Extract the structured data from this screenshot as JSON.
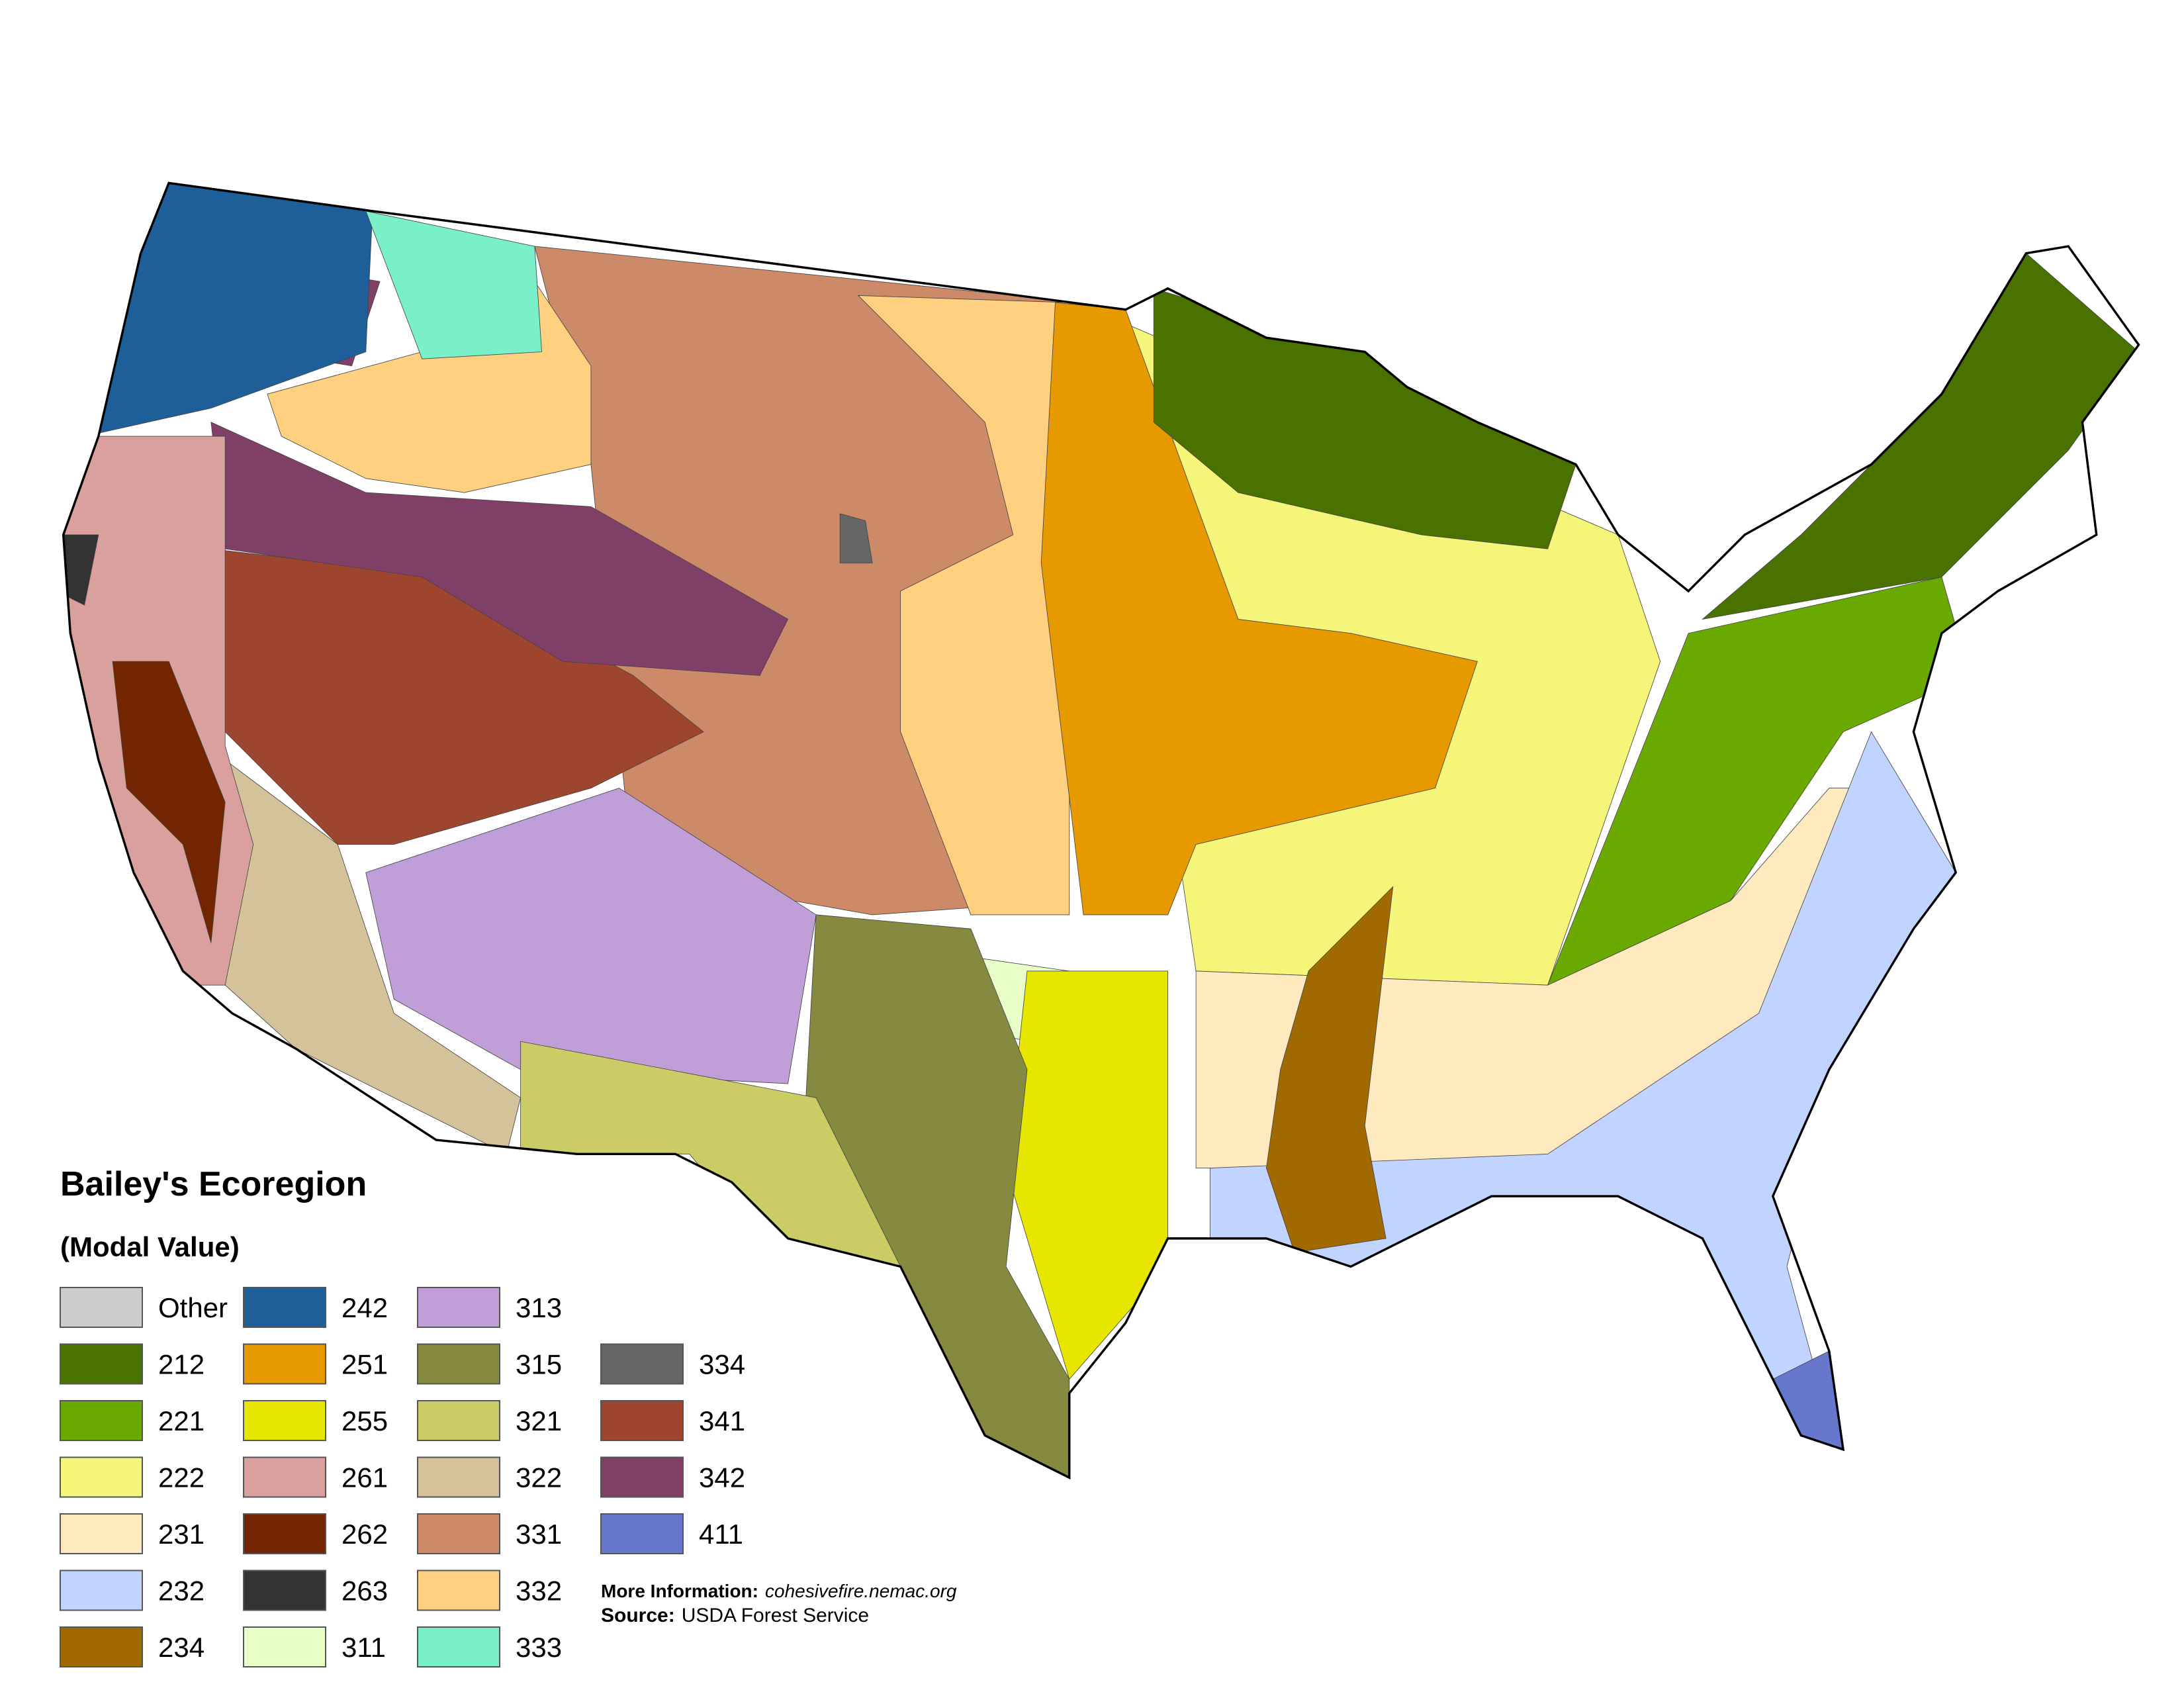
{
  "title": "Bailey's Ecoregion",
  "subtitle": "(Modal Value)",
  "legend": {
    "items": [
      {
        "label": "Other",
        "color": "#cccccc"
      },
      {
        "label": "212",
        "color": "#4a7200"
      },
      {
        "label": "221",
        "color": "#6aaa00"
      },
      {
        "label": "222",
        "color": "#f5f57a"
      },
      {
        "label": "231",
        "color": "#ffeac0"
      },
      {
        "label": "232",
        "color": "#c0d4ff"
      },
      {
        "label": "234",
        "color": "#a06a00"
      },
      {
        "label": "242",
        "color": "#1f5f99"
      },
      {
        "label": "251",
        "color": "#e69a00"
      },
      {
        "label": "255",
        "color": "#e6e600"
      },
      {
        "label": "261",
        "color": "#d9a09e"
      },
      {
        "label": "262",
        "color": "#722500"
      },
      {
        "label": "263",
        "color": "#333333"
      },
      {
        "label": "311",
        "color": "#e8ffc8"
      },
      {
        "label": "313",
        "color": "#c09ed8"
      },
      {
        "label": "315",
        "color": "#858a40"
      },
      {
        "label": "321",
        "color": "#cccc66"
      },
      {
        "label": "322",
        "color": "#d4c29a"
      },
      {
        "label": "331",
        "color": "#cc8a68"
      },
      {
        "label": "332",
        "color": "#ffd080"
      },
      {
        "label": "333",
        "color": "#7af0c8"
      },
      {
        "label": "334",
        "color": "#666666"
      },
      {
        "label": "341",
        "color": "#9e4530"
      },
      {
        "label": "342",
        "color": "#7f3f66"
      },
      {
        "label": "411",
        "color": "#6677cc"
      }
    ]
  },
  "footer": {
    "more_info_label": "More Information:",
    "more_info_url": "cohesivefire.nemac.org",
    "source_label": "Source:",
    "source": "USDA Forest Service"
  }
}
